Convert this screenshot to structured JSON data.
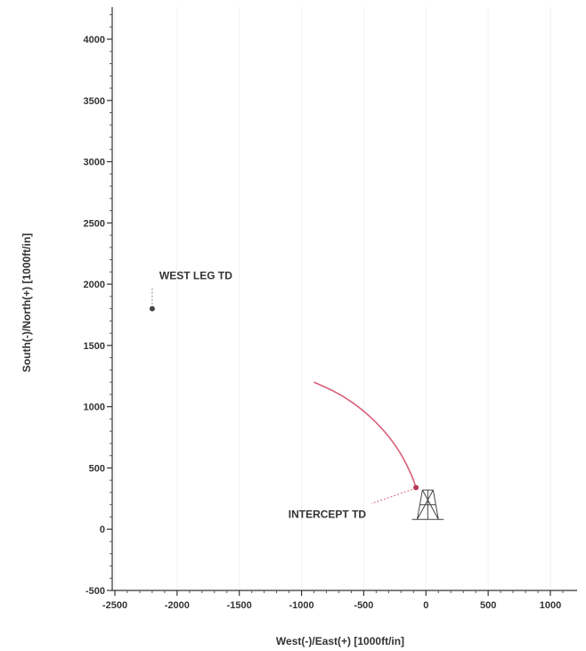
{
  "chart_data": {
    "type": "scatter",
    "xlabel": "West(-)/East(+) [1000ft/in]",
    "ylabel": "South(-)/North(+) [1000ft/in]",
    "xlim": [
      -2500,
      1200
    ],
    "ylim": [
      -500,
      4200
    ],
    "x_ticks": [
      -2500,
      -2000,
      -1500,
      -1000,
      -500,
      0,
      500,
      1000
    ],
    "y_ticks": [
      -500,
      0,
      500,
      1000,
      1500,
      2000,
      2500,
      3000,
      3500,
      4000
    ],
    "grid": false,
    "series": [
      {
        "style": "curve",
        "color": "#d9607a",
        "points": [
          [
            -900,
            1200
          ],
          [
            -700,
            1110
          ],
          [
            -500,
            970
          ],
          [
            -330,
            800
          ],
          [
            -200,
            620
          ],
          [
            -110,
            430
          ],
          [
            -80,
            340
          ]
        ]
      }
    ],
    "points": [
      {
        "label": "WEST LEG TD",
        "x": -2200,
        "y": 1800
      },
      {
        "label": "INTERCEPT TD",
        "x": -80,
        "y": 340
      }
    ],
    "structure": {
      "color": "#444444",
      "x_range": [
        -70,
        100
      ],
      "y_range": [
        80,
        320
      ]
    }
  }
}
